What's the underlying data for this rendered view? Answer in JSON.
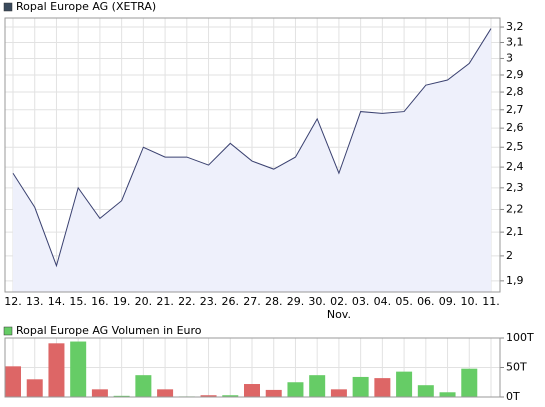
{
  "chart_data": [
    {
      "type": "line",
      "title": "Ropal Europe AG (XETRA)",
      "log": true,
      "grid": true,
      "color": "#3a4170",
      "fill": "#eef0fb",
      "legend_color": "#3a4a5c",
      "categories": [
        "12.",
        "13.",
        "14.",
        "15.",
        "16.",
        "19.",
        "20.",
        "21.",
        "22.",
        "23.",
        "26.",
        "27.",
        "28.",
        "29.",
        "30.",
        "02.",
        "03.",
        "04.",
        "05.",
        "06.",
        "09.",
        "10.",
        "11."
      ],
      "x_sublabels": [
        null,
        null,
        null,
        null,
        null,
        null,
        null,
        null,
        null,
        null,
        null,
        null,
        null,
        null,
        null,
        "Nov.",
        null,
        null,
        null,
        null,
        null,
        null,
        null
      ],
      "values": [
        2.37,
        2.21,
        1.96,
        2.3,
        2.16,
        2.24,
        2.5,
        2.45,
        2.45,
        2.41,
        2.52,
        2.43,
        2.39,
        2.45,
        2.65,
        2.37,
        2.69,
        2.68,
        2.69,
        2.84,
        2.87,
        2.97,
        3.19
      ],
      "ylim": [
        1.857,
        3.26
      ],
      "yticks": [
        {
          "value": 1.9,
          "label": "1,9"
        },
        2,
        {
          "value": 2.1,
          "label": "2,1"
        },
        {
          "value": 2.2,
          "label": "2,2"
        },
        {
          "value": 2.3,
          "label": "2,3"
        },
        {
          "value": 2.4,
          "label": "2,4"
        },
        {
          "value": 2.5,
          "label": "2,5"
        },
        {
          "value": 2.6,
          "label": "2,6"
        },
        {
          "value": 2.7,
          "label": "2,7"
        },
        {
          "value": 2.8,
          "label": "2,8"
        },
        {
          "value": 2.9,
          "label": "2,9"
        },
        3,
        {
          "value": 3.1,
          "label": "3,1"
        },
        {
          "value": 3.2,
          "label": "3,2"
        }
      ]
    },
    {
      "type": "bar",
      "title": "Ropal Europe AG Volumen in Euro",
      "grid": true,
      "legend_color": "#66cc66",
      "categories": [
        "12.",
        "13.",
        "14.",
        "15.",
        "16.",
        "19.",
        "20.",
        "21.",
        "22.",
        "23.",
        "26.",
        "27.",
        "28.",
        "29.",
        "30.",
        "02.",
        "03.",
        "04.",
        "05.",
        "06.",
        "09.",
        "10.",
        "11."
      ],
      "values": [
        52,
        30,
        91,
        94,
        13,
        2,
        37,
        13,
        1,
        3,
        3,
        22,
        12,
        25,
        37,
        13,
        34,
        32,
        43,
        20,
        8,
        48,
        null
      ],
      "colors": [
        "#dd6666",
        "#dd6666",
        "#dd6666",
        "#66cc66",
        "#dd6666",
        "#66cc66",
        "#66cc66",
        "#dd6666",
        "#66cc66",
        "#dd6666",
        "#66cc66",
        "#dd6666",
        "#dd6666",
        "#66cc66",
        "#66cc66",
        "#dd6666",
        "#66cc66",
        "#dd6666",
        "#66cc66",
        "#66cc66",
        "#66cc66",
        "#66cc66",
        null
      ],
      "ylim": [
        0,
        100
      ],
      "yticks": [
        {
          "value": 0,
          "label": "0T"
        },
        {
          "value": 50,
          "label": "50T"
        },
        {
          "value": 100,
          "label": "100T"
        }
      ]
    }
  ]
}
